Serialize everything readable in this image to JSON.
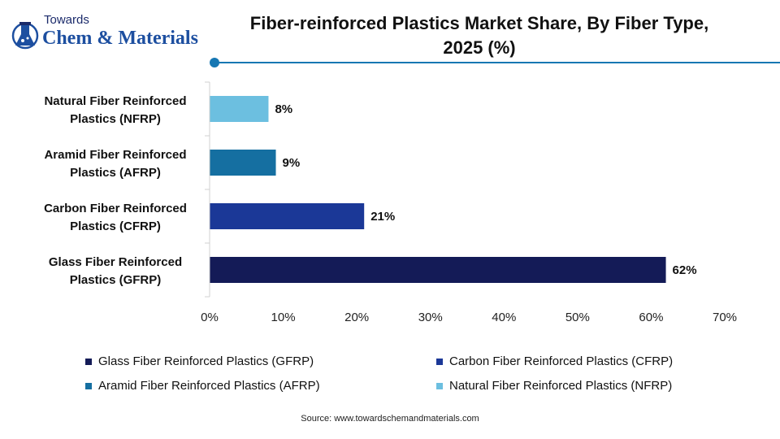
{
  "logo": {
    "line1": "Towards",
    "line2": "Chem & Materials"
  },
  "title_line1": "Fiber-reinforced Plastics Market Share, By Fiber Type,",
  "title_line2": "2025 (%)",
  "chart_data": {
    "type": "bar",
    "orientation": "horizontal",
    "categories": [
      "Natural Fiber Reinforced Plastics (NFRP)",
      "Aramid Fiber Reinforced Plastics (AFRP)",
      "Carbon Fiber Reinforced Plastics (CFRP)",
      "Glass Fiber Reinforced Plastics (GFRP)"
    ],
    "category_lines": [
      [
        "Natural Fiber Reinforced",
        "Plastics (NFRP)"
      ],
      [
        "Aramid Fiber Reinforced",
        "Plastics (AFRP)"
      ],
      [
        "Carbon Fiber Reinforced",
        "Plastics (CFRP)"
      ],
      [
        "Glass Fiber Reinforced",
        "Plastics (GFRP)"
      ]
    ],
    "values": [
      8,
      9,
      21,
      62
    ],
    "data_labels": [
      "8%",
      "9%",
      "21%",
      "62%"
    ],
    "colors": [
      "#6cbfe0",
      "#156fa1",
      "#1b3897",
      "#141b57"
    ],
    "xlim": [
      0,
      70
    ],
    "xticks": [
      0,
      10,
      20,
      30,
      40,
      50,
      60,
      70
    ],
    "xtick_labels": [
      "0%",
      "10%",
      "20%",
      "30%",
      "40%",
      "50%",
      "60%",
      "70%"
    ],
    "grid": false,
    "legend_position": "bottom"
  },
  "legend": [
    {
      "label": "Glass Fiber Reinforced Plastics (GFRP)",
      "color": "#141b57"
    },
    {
      "label": "Carbon Fiber Reinforced Plastics (CFRP)",
      "color": "#1b3897"
    },
    {
      "label": "Aramid Fiber Reinforced Plastics (AFRP)",
      "color": "#156fa1"
    },
    {
      "label": "Natural Fiber Reinforced Plastics (NFRP)",
      "color": "#6cbfe0"
    }
  ],
  "source": "Source: www.towardschemandmaterials.com"
}
